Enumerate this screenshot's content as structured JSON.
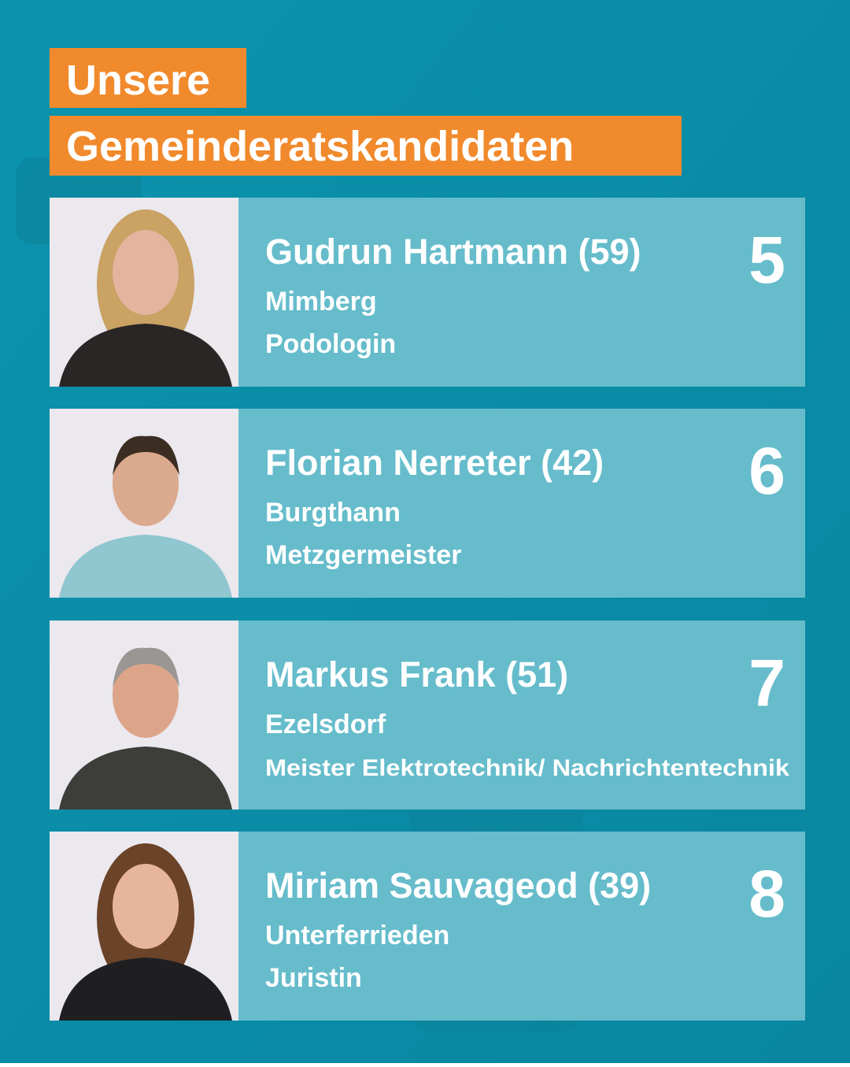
{
  "header": {
    "title_lines": [
      "Unsere",
      "Gemeinderatskandidaten"
    ]
  },
  "candidates": [
    {
      "name": "Gudrun Hartmann (59)",
      "place": "Mimberg",
      "job": "Podologin",
      "number": 5
    },
    {
      "name": "Florian Nerreter (42)",
      "place": "Burgthann",
      "job": "Metzgermeister",
      "number": 6
    },
    {
      "name": "Markus Frank (51)",
      "place": "Ezelsdorf",
      "job": "Meister Elektrotechnik/ Nachrichtentechnik",
      "number": 7
    },
    {
      "name": "Miriam Sauvageod (39)",
      "place": "Unterferrieden",
      "job": "Juristin",
      "number": 8
    }
  ]
}
